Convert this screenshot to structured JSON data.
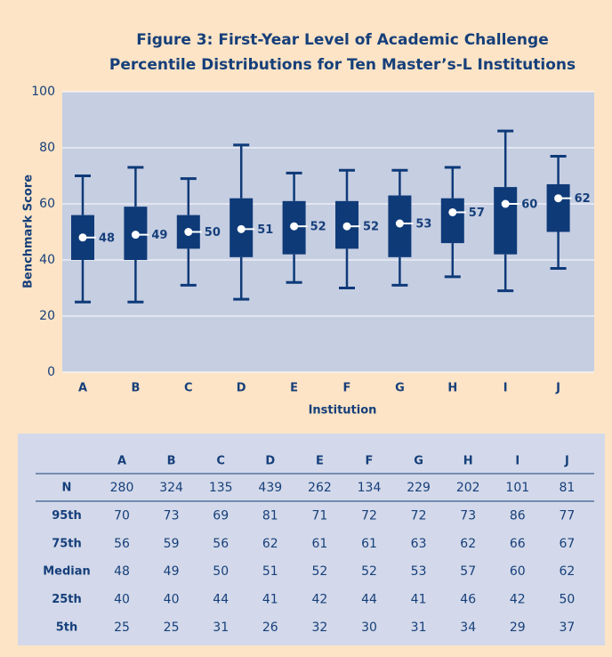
{
  "chart_data": {
    "type": "box",
    "title": [
      "Figure 3: First-Year Level of Academic Challenge",
      "Percentile Distributions for Ten Master’s-L Institutions"
    ],
    "y_label": "Benchmark Score",
    "x_label": "Institution",
    "categories": [
      "A",
      "B",
      "C",
      "D",
      "E",
      "F",
      "G",
      "H",
      "I",
      "J"
    ],
    "p95": [
      70,
      73,
      69,
      81,
      71,
      72,
      72,
      73,
      86,
      77
    ],
    "p75": [
      56,
      59,
      56,
      62,
      61,
      61,
      63,
      62,
      66,
      67
    ],
    "median": [
      48,
      49,
      50,
      51,
      52,
      52,
      53,
      57,
      60,
      62
    ],
    "p25": [
      40,
      40,
      44,
      41,
      42,
      44,
      41,
      46,
      42,
      50
    ],
    "p5": [
      25,
      25,
      31,
      26,
      32,
      30,
      31,
      34,
      29,
      37
    ],
    "color": "#0e3a78",
    "ylim": [
      0,
      100
    ],
    "yticks": [
      0,
      20,
      40,
      60,
      80,
      100
    ],
    "grid": true
  },
  "table": {
    "columns": [
      "A",
      "B",
      "C",
      "D",
      "E",
      "F",
      "G",
      "H",
      "I",
      "J"
    ],
    "rows": [
      {
        "label": "N",
        "values": [
          280,
          324,
          135,
          439,
          262,
          134,
          229,
          202,
          101,
          81
        ]
      },
      {
        "label": "95th",
        "values": [
          70,
          73,
          69,
          81,
          71,
          72,
          72,
          73,
          86,
          77
        ]
      },
      {
        "label": "75th",
        "values": [
          56,
          59,
          56,
          62,
          61,
          61,
          63,
          62,
          66,
          67
        ]
      },
      {
        "label": "Median",
        "values": [
          48,
          49,
          50,
          51,
          52,
          52,
          53,
          57,
          60,
          62
        ]
      },
      {
        "label": "25th",
        "values": [
          40,
          40,
          44,
          41,
          42,
          44,
          41,
          46,
          42,
          50
        ]
      },
      {
        "label": "5th",
        "values": [
          25,
          25,
          31,
          26,
          32,
          30,
          31,
          34,
          29,
          37
        ]
      }
    ]
  }
}
